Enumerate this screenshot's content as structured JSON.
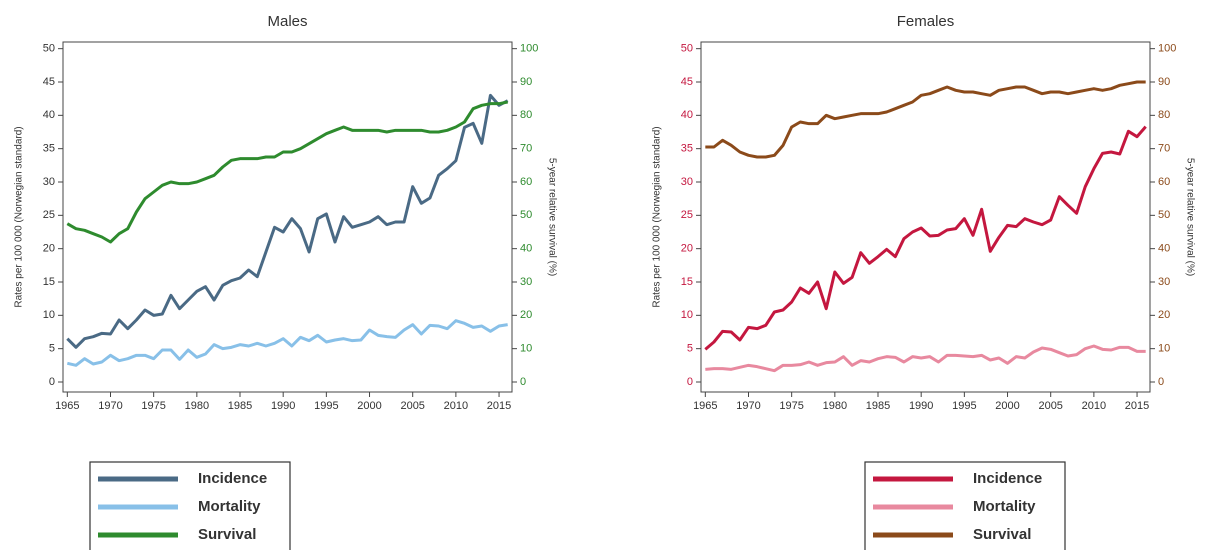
{
  "chart_data": [
    {
      "type": "line",
      "title": "Males",
      "ylabel": "Rates per 100 000 (Norwegian standard)",
      "y2label": "5-year relative survival (%)",
      "x": [
        1965,
        1966,
        1967,
        1968,
        1969,
        1970,
        1971,
        1972,
        1973,
        1974,
        1975,
        1976,
        1977,
        1978,
        1979,
        1980,
        1981,
        1982,
        1983,
        1984,
        1985,
        1986,
        1987,
        1988,
        1989,
        1990,
        1991,
        1992,
        1993,
        1994,
        1995,
        1996,
        1997,
        1998,
        1999,
        2000,
        2001,
        2002,
        2003,
        2004,
        2005,
        2006,
        2007,
        2008,
        2009,
        2010,
        2011,
        2012,
        2013,
        2014,
        2015,
        2016
      ],
      "xlim": [
        1964.5,
        2016.5
      ],
      "xticks": [
        1965,
        1970,
        1975,
        1980,
        1985,
        1990,
        1995,
        2000,
        2005,
        2010,
        2015
      ],
      "ylim": [
        -1.5,
        51
      ],
      "yticks": [
        0,
        5,
        10,
        15,
        20,
        25,
        30,
        35,
        40,
        45,
        50
      ],
      "y2lim": [
        -3,
        102
      ],
      "y2ticks": [
        0,
        10,
        20,
        30,
        40,
        50,
        60,
        70,
        80,
        90,
        100
      ],
      "ytick_color": "#333333",
      "y2tick_color": "#2e8b2e",
      "legend": "below",
      "series": [
        {
          "name": "Incidence",
          "color": "#4a6a85",
          "values": [
            6.5,
            5.2,
            6.5,
            6.8,
            7.3,
            7.2,
            9.3,
            8.0,
            9.3,
            10.8,
            10.0,
            10.2,
            13.0,
            11.0,
            12.3,
            13.6,
            14.3,
            12.3,
            14.5,
            15.2,
            15.6,
            16.8,
            15.8,
            19.5,
            23.2,
            22.5,
            24.5,
            23.0,
            19.5,
            24.5,
            25.2,
            21.0,
            24.8,
            23.2,
            23.6,
            24.0,
            24.8,
            23.6,
            24.0,
            24.0,
            29.3,
            26.8,
            27.6,
            31.0,
            32.0,
            33.2,
            38.2,
            38.8,
            35.8,
            43.0,
            41.5,
            42.2
          ]
        },
        {
          "name": "Mortality",
          "color": "#88c0e8",
          "values": [
            2.8,
            2.5,
            3.5,
            2.7,
            3.0,
            4.0,
            3.2,
            3.5,
            4.0,
            4.0,
            3.5,
            4.8,
            4.8,
            3.4,
            4.8,
            3.7,
            4.2,
            5.6,
            5.0,
            5.2,
            5.6,
            5.4,
            5.8,
            5.4,
            5.8,
            6.5,
            5.4,
            6.7,
            6.2,
            7.0,
            6.0,
            6.3,
            6.5,
            6.2,
            6.3,
            7.8,
            7.0,
            6.8,
            6.7,
            7.8,
            8.6,
            7.2,
            8.5,
            8.4,
            8.0,
            9.2,
            8.8,
            8.2,
            8.4,
            7.6,
            8.4,
            8.6
          ]
        },
        {
          "name": "Survival",
          "color": "#2e8b2e",
          "axis": "y2",
          "values": [
            47.5,
            46,
            45.5,
            44.5,
            43.5,
            42,
            44.5,
            46,
            51,
            55,
            57,
            59,
            60,
            59.5,
            59.5,
            60,
            61,
            62,
            64.5,
            66.5,
            67,
            67,
            67,
            67.5,
            67.5,
            69,
            69,
            70,
            71.5,
            73,
            74.5,
            75.5,
            76.5,
            75.5,
            75.5,
            75.5,
            75.5,
            75,
            75.5,
            75.5,
            75.5,
            75.5,
            75,
            75,
            75.5,
            76.5,
            78,
            82,
            83,
            83.5,
            83.5,
            84
          ]
        }
      ]
    },
    {
      "type": "line",
      "title": "Females",
      "ylabel": "Rates per 100 000 (Norwegian standard)",
      "y2label": "5-year relative survival (%)",
      "x": [
        1965,
        1966,
        1967,
        1968,
        1969,
        1970,
        1971,
        1972,
        1973,
        1974,
        1975,
        1976,
        1977,
        1978,
        1979,
        1980,
        1981,
        1982,
        1983,
        1984,
        1985,
        1986,
        1987,
        1988,
        1989,
        1990,
        1991,
        1992,
        1993,
        1994,
        1995,
        1996,
        1997,
        1998,
        1999,
        2000,
        2001,
        2002,
        2003,
        2004,
        2005,
        2006,
        2007,
        2008,
        2009,
        2010,
        2011,
        2012,
        2013,
        2014,
        2015,
        2016
      ],
      "xlim": [
        1964.5,
        2016.5
      ],
      "xticks": [
        1965,
        1970,
        1975,
        1980,
        1985,
        1990,
        1995,
        2000,
        2005,
        2010,
        2015
      ],
      "ylim": [
        -1.5,
        51
      ],
      "yticks": [
        0,
        5,
        10,
        15,
        20,
        25,
        30,
        35,
        40,
        45,
        50
      ],
      "y2lim": [
        -3,
        102
      ],
      "y2ticks": [
        0,
        10,
        20,
        30,
        40,
        50,
        60,
        70,
        80,
        90,
        100
      ],
      "ytick_color": "#c4173f",
      "y2tick_color": "#8b4a1a",
      "legend": "below",
      "series": [
        {
          "name": "Incidence",
          "color": "#c4173f",
          "values": [
            4.9,
            6,
            7.6,
            7.5,
            6.3,
            8.2,
            8.0,
            8.5,
            10.5,
            10.8,
            12.0,
            14.1,
            13.3,
            15.0,
            11.0,
            16.5,
            14.8,
            15.7,
            19.4,
            17.8,
            18.8,
            19.9,
            18.8,
            21.5,
            22.5,
            23.1,
            21.9,
            22.0,
            22.8,
            23.0,
            24.5,
            22.0,
            25.9,
            19.6,
            21.7,
            23.5,
            23.3,
            24.5,
            24.0,
            23.6,
            24.3,
            27.8,
            26.5,
            25.3,
            29.3,
            32.0,
            34.3,
            34.5,
            34.2,
            37.6,
            36.8,
            38.3
          ]
        },
        {
          "name": "Mortality",
          "color": "#e8899f",
          "values": [
            1.9,
            2.0,
            2.0,
            1.9,
            2.2,
            2.5,
            2.3,
            2.0,
            1.7,
            2.5,
            2.5,
            2.6,
            3.0,
            2.5,
            2.9,
            3.0,
            3.8,
            2.5,
            3.2,
            3.0,
            3.5,
            3.8,
            3.7,
            3.0,
            3.8,
            3.6,
            3.8,
            3.0,
            4.0,
            4.0,
            3.9,
            3.8,
            4.0,
            3.3,
            3.6,
            2.8,
            3.8,
            3.6,
            4.5,
            5.1,
            4.9,
            4.4,
            3.9,
            4.1,
            5.0,
            5.4,
            4.9,
            4.8,
            5.2,
            5.2,
            4.6,
            4.6
          ]
        },
        {
          "name": "Survival",
          "color": "#8b4a1a",
          "axis": "y2",
          "values": [
            70.5,
            70.5,
            72.5,
            71,
            69,
            68,
            67.5,
            67.5,
            68,
            71,
            76.5,
            78,
            77.5,
            77.5,
            80,
            79,
            79.5,
            80,
            80.5,
            80.5,
            80.5,
            81,
            82,
            83,
            84,
            86,
            86.5,
            87.5,
            88.5,
            87.5,
            87,
            87,
            86.5,
            86,
            87.5,
            88,
            88.5,
            88.5,
            87.5,
            86.5,
            87,
            87,
            86.5,
            87,
            87.5,
            88,
            87.5,
            88,
            89,
            89.5,
            90,
            90
          ]
        }
      ]
    }
  ]
}
